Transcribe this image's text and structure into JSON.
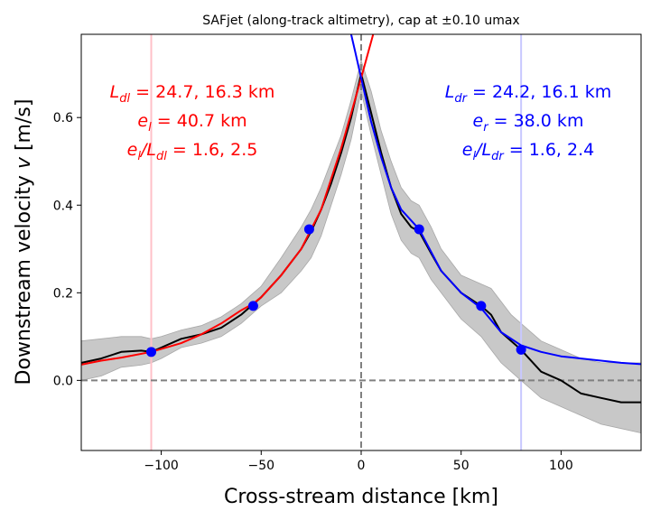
{
  "chart_data": {
    "type": "line",
    "title": "SAFjet (along-track altimetry), cap at ±0.10 umax",
    "xlabel": "Cross-stream distance [km]",
    "ylabel_prefix": "Downstream velocity ",
    "ylabel_var": "v",
    "ylabel_suffix": " [m/s]",
    "xlim": [
      -140,
      140
    ],
    "ylim": [
      -0.16,
      0.79
    ],
    "xticks": [
      -100,
      -50,
      0,
      50,
      100
    ],
    "xtick_labels": [
      "−100",
      "−50",
      "0",
      "50",
      "100"
    ],
    "yticks": [
      0.0,
      0.2,
      0.4,
      0.6
    ],
    "ytick_labels": [
      "0.0",
      "0.2",
      "0.4",
      "0.6"
    ],
    "grid": false,
    "legend": "none",
    "colors": {
      "observed": "#000000",
      "envelope": "#c8c8c8",
      "left_fit": "#ff0000",
      "right_fit": "#0000ff",
      "markers": "#0000ff",
      "reference": "#808080",
      "left_edge": "#ffc0c8",
      "right_edge": "#c8c8ff"
    },
    "observed": {
      "x": [
        -140,
        -130,
        -120,
        -110,
        -105,
        -100,
        -90,
        -80,
        -70,
        -60,
        -55,
        -50,
        -40,
        -30,
        -25,
        -20,
        -15,
        -10,
        -5,
        0,
        5,
        10,
        15,
        20,
        25,
        29,
        35,
        40,
        50,
        60,
        65,
        70,
        75,
        80,
        90,
        100,
        110,
        120,
        130,
        140
      ],
      "y": [
        0.04,
        0.05,
        0.065,
        0.068,
        0.065,
        0.075,
        0.095,
        0.105,
        0.12,
        0.15,
        0.17,
        0.19,
        0.24,
        0.3,
        0.34,
        0.39,
        0.45,
        0.52,
        0.6,
        0.7,
        0.61,
        0.52,
        0.44,
        0.38,
        0.35,
        0.34,
        0.29,
        0.25,
        0.2,
        0.17,
        0.15,
        0.11,
        0.09,
        0.07,
        0.02,
        0.0,
        -0.03,
        -0.04,
        -0.05,
        -0.05
      ]
    },
    "envelope": {
      "x": [
        -140,
        -130,
        -120,
        -110,
        -105,
        -100,
        -90,
        -80,
        -70,
        -60,
        -55,
        -50,
        -40,
        -30,
        -25,
        -20,
        -15,
        -10,
        -5,
        0,
        5,
        10,
        15,
        20,
        25,
        29,
        35,
        40,
        50,
        60,
        65,
        70,
        75,
        80,
        90,
        100,
        110,
        120,
        130,
        140
      ],
      "lower": [
        0.0,
        0.01,
        0.03,
        0.035,
        0.04,
        0.05,
        0.075,
        0.085,
        0.1,
        0.13,
        0.15,
        0.17,
        0.2,
        0.25,
        0.28,
        0.33,
        0.4,
        0.47,
        0.55,
        0.66,
        0.56,
        0.47,
        0.38,
        0.32,
        0.29,
        0.28,
        0.23,
        0.2,
        0.14,
        0.1,
        0.07,
        0.04,
        0.02,
        0.0,
        -0.04,
        -0.06,
        -0.08,
        -0.1,
        -0.11,
        -0.12
      ],
      "upper": [
        0.09,
        0.095,
        0.1,
        0.1,
        0.095,
        0.1,
        0.115,
        0.125,
        0.145,
        0.175,
        0.195,
        0.215,
        0.28,
        0.35,
        0.39,
        0.44,
        0.5,
        0.56,
        0.64,
        0.73,
        0.66,
        0.57,
        0.5,
        0.44,
        0.41,
        0.4,
        0.35,
        0.3,
        0.24,
        0.22,
        0.21,
        0.18,
        0.15,
        0.13,
        0.09,
        0.07,
        0.05,
        0.04,
        0.04,
        0.04
      ]
    },
    "left_fit": {
      "x": [
        -140,
        -130,
        -120,
        -105,
        -90,
        -80,
        -70,
        -60,
        -54,
        -50,
        -40,
        -30,
        -25,
        -20,
        -10,
        0,
        3,
        6
      ],
      "y": [
        0.036,
        0.045,
        0.052,
        0.065,
        0.085,
        0.105,
        0.13,
        0.16,
        0.175,
        0.19,
        0.24,
        0.3,
        0.345,
        0.39,
        0.53,
        0.69,
        0.74,
        0.79
      ]
    },
    "right_fit": {
      "x": [
        -5,
        -3,
        0,
        5,
        10,
        15,
        20,
        29,
        40,
        50,
        60,
        70,
        80,
        90,
        100,
        110,
        120,
        130,
        140
      ],
      "y": [
        0.79,
        0.75,
        0.69,
        0.59,
        0.51,
        0.44,
        0.39,
        0.345,
        0.25,
        0.2,
        0.165,
        0.11,
        0.08,
        0.065,
        0.055,
        0.05,
        0.045,
        0.04,
        0.037
      ]
    },
    "markers": {
      "x": [
        -105,
        -54,
        -26,
        29,
        60,
        80
      ],
      "y": [
        0.065,
        0.17,
        0.345,
        0.345,
        0.17,
        0.07
      ]
    },
    "left_edge_x": -105,
    "right_edge_x": 80,
    "center_x": 0,
    "zero_y": 0,
    "annotations": {
      "left": {
        "line1_sym": "L",
        "line1_sub": "dl",
        "line1_rest": " = 24.7, 16.3 km",
        "line2_sym": "e",
        "line2_sub": "l",
        "line2_rest": " = 40.7 km",
        "line3_sym1": "e",
        "line3_sub1": "l",
        "line3_slash": "/",
        "line3_sym2": "L",
        "line3_sub2": "dl",
        "line3_rest": " = 1.6, 2.5"
      },
      "right": {
        "line1_sym": "L",
        "line1_sub": "dr",
        "line1_rest": " = 24.2, 16.1 km",
        "line2_sym": "e",
        "line2_sub": "r",
        "line2_rest": " = 38.0 km",
        "line3_sym1": "e",
        "line3_sub1": "l",
        "line3_slash": "/",
        "line3_sym2": "L",
        "line3_sub2": "dr",
        "line3_rest": " = 1.6, 2.4"
      }
    }
  }
}
